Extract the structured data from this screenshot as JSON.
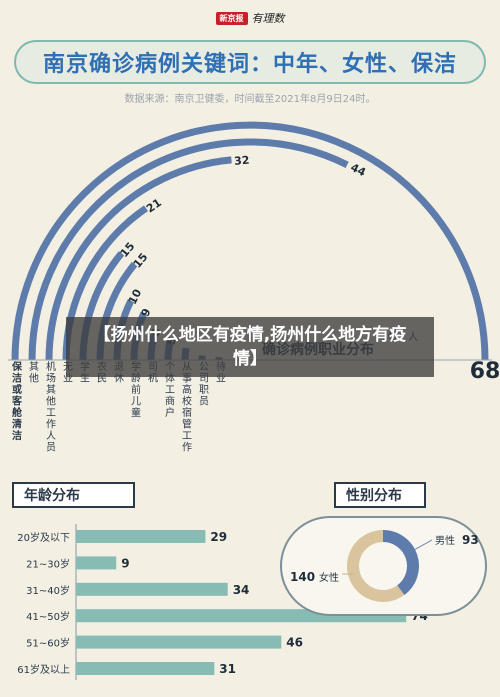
{
  "masthead": {
    "logo": "新京报",
    "brand": "有理数"
  },
  "header": {
    "title": "南京确诊病例关键词：中年、女性、保洁",
    "source": "数据来源：南京卫健委，时间截至2021年8月9日24时。"
  },
  "overlay": {
    "text": "【扬州什么地区有疫情,扬州什么地方有疫情】"
  },
  "chart_data": [
    {
      "type": "bar",
      "layout": "radial-arc",
      "title": "确诊病例职业分布",
      "unit": "单位：人",
      "categories": [
        "保洁或客舱清洁",
        "其他",
        "机场其他工作人员",
        "无业",
        "学生",
        "农民",
        "退休",
        "学龄前儿童",
        "司机",
        "个体工商户",
        "从事高校宿管工作",
        "公司职员",
        "待业"
      ],
      "values": [
        68,
        44,
        32,
        21,
        15,
        15,
        10,
        9,
        6,
        5,
        4,
        2,
        2
      ],
      "value_labels": [
        "68",
        "44",
        "32",
        "21",
        "15",
        "15",
        "10",
        "9",
        "6",
        "5",
        "",
        "",
        ""
      ],
      "colors": {
        "highlight": "#5e7cab",
        "normal": "#5e7cab"
      }
    },
    {
      "type": "bar",
      "orientation": "horizontal",
      "title": "年龄分布",
      "categories": [
        "20岁及以下",
        "21~30岁",
        "31~40岁",
        "41~50岁",
        "51~60岁",
        "61岁及以上"
      ],
      "values": [
        29,
        9,
        34,
        74,
        46,
        31
      ],
      "xlim": [
        0,
        80
      ],
      "colors": {
        "bar": "#86bcb3"
      }
    },
    {
      "type": "pie",
      "donut": true,
      "title": "性别分布",
      "categories": [
        "男性",
        "女性"
      ],
      "values": [
        93,
        140
      ],
      "colors": {
        "男性": "#5e7cab",
        "女性": "#d9c49e"
      }
    }
  ]
}
